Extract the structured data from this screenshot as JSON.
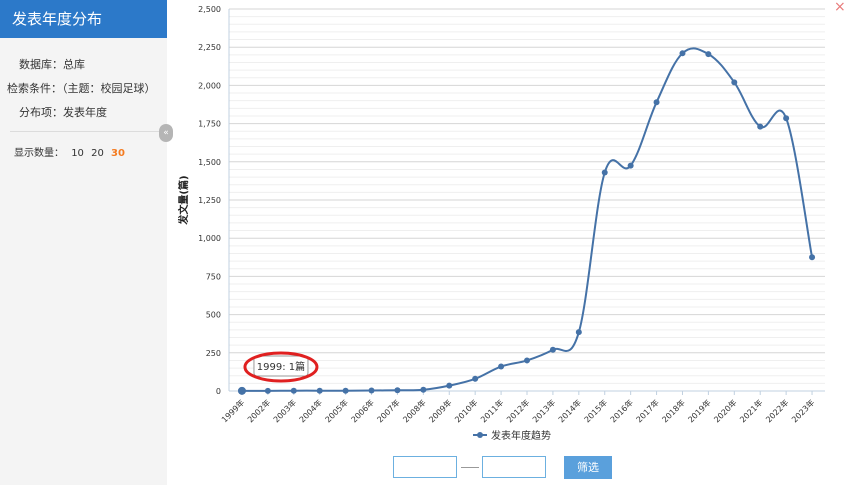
{
  "sidebar": {
    "title": "发表年度分布",
    "database": "数据库：总库",
    "condition": "检索条件：（主题：校园足球）",
    "distribution": "分布项：发表年度",
    "count_label": "显示数量：",
    "count_options": [
      "10",
      "20",
      "30"
    ],
    "count_active": "30",
    "collapse_icon": "«"
  },
  "close_icon": "×",
  "filter": {
    "button_label": "筛选",
    "from_value": "",
    "to_value": ""
  },
  "chart_data": {
    "type": "line",
    "title": "",
    "xlabel": "",
    "ylabel": "发文量(篇)",
    "categories": [
      "1999年",
      "2002年",
      "2003年",
      "2004年",
      "2005年",
      "2006年",
      "2007年",
      "2008年",
      "2009年",
      "2010年",
      "2011年",
      "2012年",
      "2013年",
      "2014年",
      "2015年",
      "2016年",
      "2017年",
      "2018年",
      "2019年",
      "2020年",
      "2021年",
      "2022年",
      "2023年"
    ],
    "series": [
      {
        "name": "发表年度趋势",
        "values": [
          1,
          1,
          2,
          2,
          2,
          3,
          5,
          8,
          35,
          80,
          160,
          200,
          270,
          385,
          1430,
          1475,
          1890,
          2210,
          2205,
          2020,
          1730,
          1785,
          875
        ]
      }
    ],
    "ylim": [
      0,
      2500
    ],
    "yticks": [
      0,
      250,
      500,
      750,
      1000,
      1250,
      1500,
      1750,
      2000,
      2250,
      2500
    ],
    "ytick_labels": [
      "0",
      "250",
      "500",
      "750",
      "1,000",
      "1,250",
      "1,500",
      "1,750",
      "2,000",
      "2,250",
      "2,500"
    ],
    "grid": true,
    "legend": "bottom-center",
    "tooltip": "1999: 1篇",
    "color": "#4572a7"
  }
}
